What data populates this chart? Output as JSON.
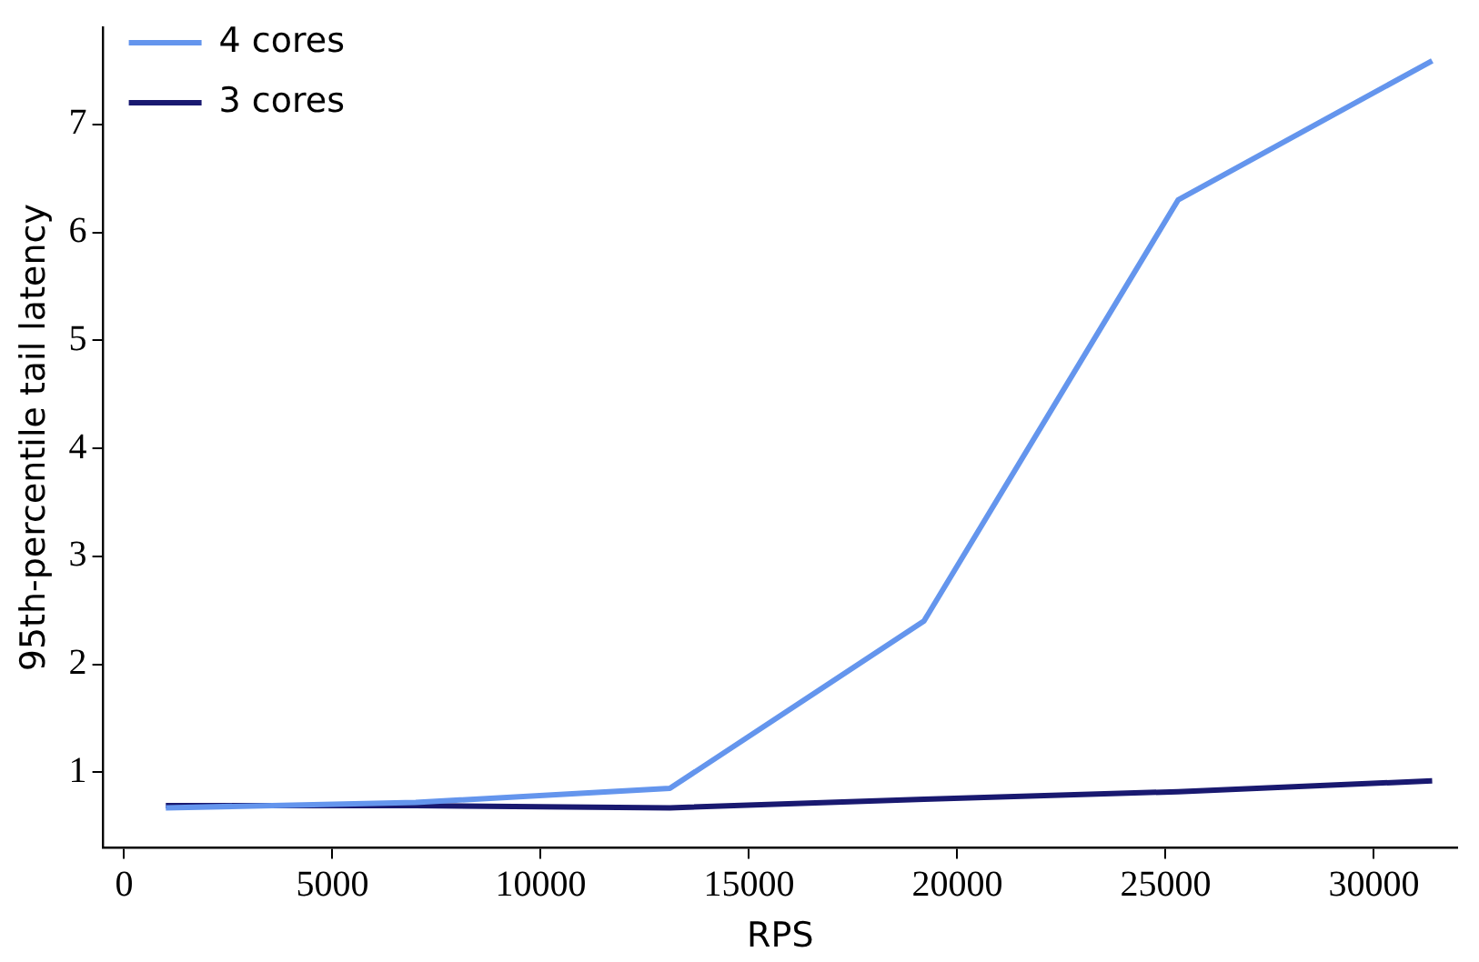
{
  "chart_data": {
    "type": "line",
    "xlabel": "RPS",
    "ylabel": "95th-percentile tail latency",
    "x": [
      1000,
      7000,
      13100,
      19200,
      25300,
      31400
    ],
    "series": [
      {
        "name": "4 cores",
        "color": "#6495ed",
        "values": [
          0.67,
          0.72,
          0.85,
          2.4,
          6.3,
          7.59
        ]
      },
      {
        "name": "3 cores",
        "color": "#191970",
        "values": [
          0.69,
          0.69,
          0.67,
          0.75,
          0.82,
          0.92
        ]
      }
    ],
    "xlim": [
      -500,
      32000
    ],
    "xticks": [
      0,
      5000,
      10000,
      15000,
      20000,
      25000,
      30000
    ],
    "ylim": [
      0.3,
      7.9
    ],
    "yticks": [
      1,
      2,
      3,
      4,
      5,
      6,
      7
    ],
    "grid": false,
    "legend": "top left",
    "marker": "none",
    "line_style": "solid"
  }
}
